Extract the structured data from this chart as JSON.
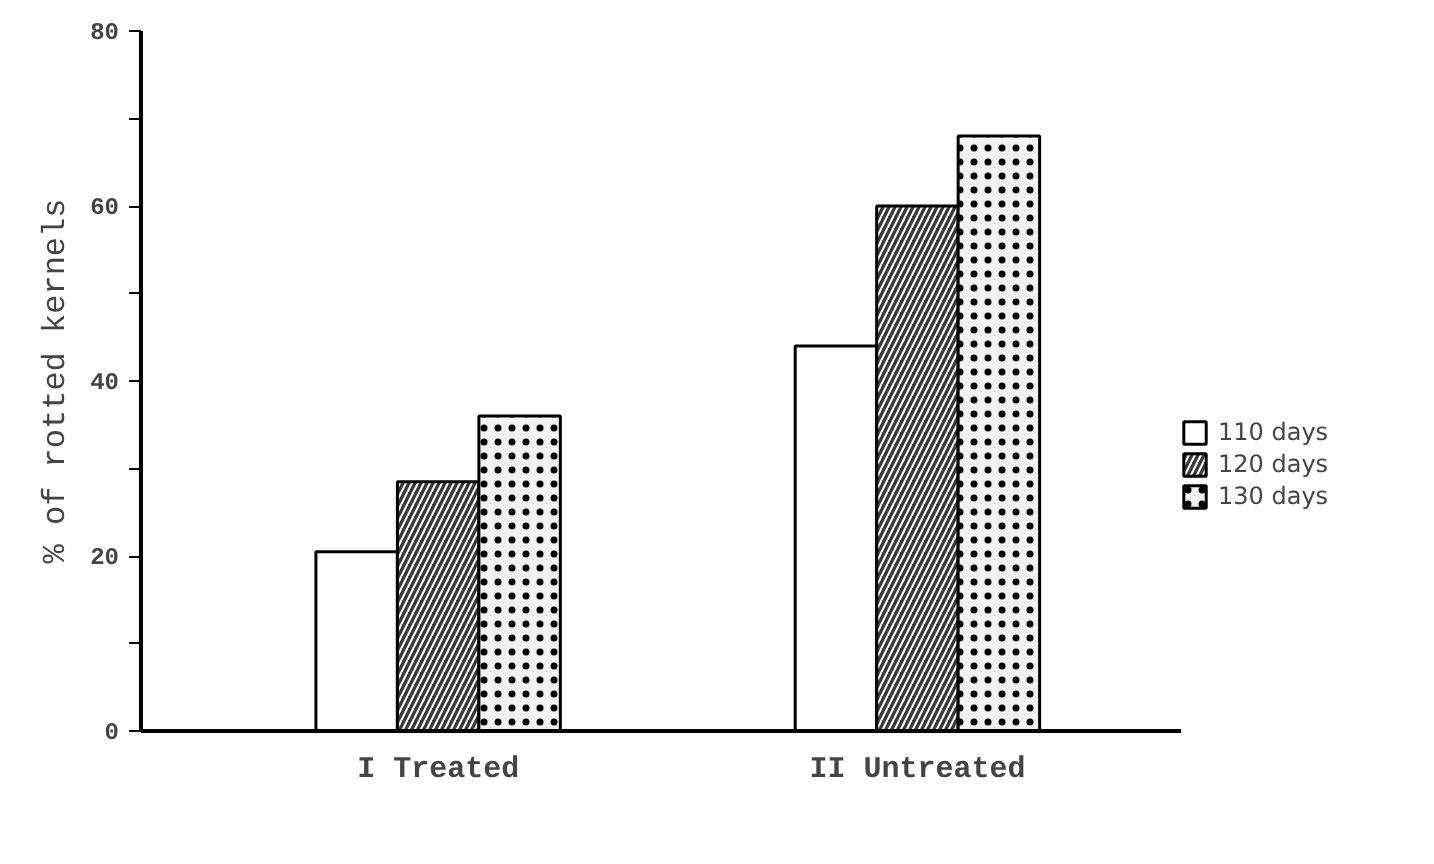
{
  "chart_data": {
    "type": "bar",
    "ylabel": "% of rotted kernels",
    "categories": [
      "I Treated",
      "II Untreated"
    ],
    "series": [
      {
        "name": "110 days",
        "color": "#ffffff",
        "values": [
          20.5,
          44
        ]
      },
      {
        "name": "120 days",
        "color": "#3a3a3a",
        "values": [
          28.5,
          60
        ]
      },
      {
        "name": "130 days",
        "color": "#f2f2f2",
        "values": [
          36,
          68
        ]
      }
    ],
    "ylim": [
      0,
      80
    ],
    "yticks": [
      0,
      {
        "value": 10,
        "label": null
      },
      20,
      {
        "value": 30,
        "label": null
      },
      40,
      {
        "value": 50,
        "label": null
      },
      60,
      {
        "value": 70,
        "label": null
      },
      80
    ],
    "grid": false,
    "legend": "right"
  }
}
